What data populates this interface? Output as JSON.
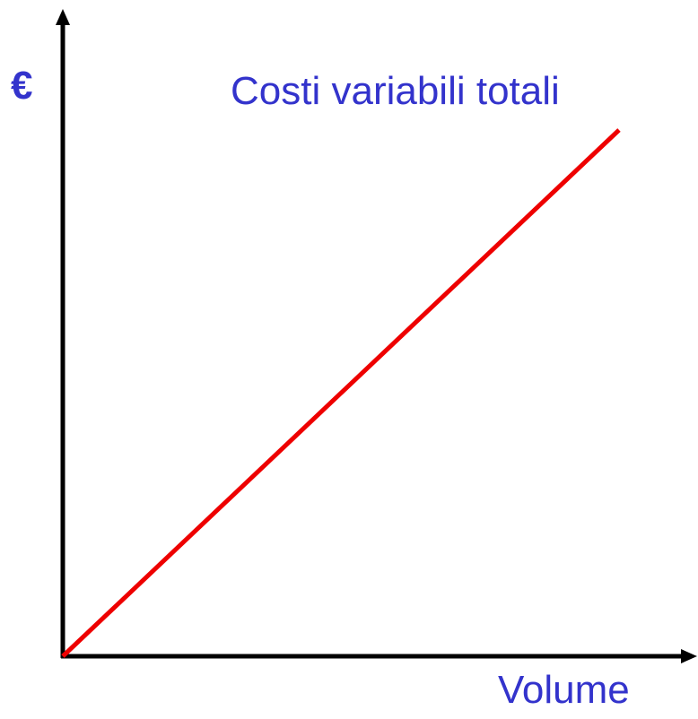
{
  "y_axis_label": "€",
  "x_axis_label": "Volume",
  "line_label": "Costi variabili totali"
}
